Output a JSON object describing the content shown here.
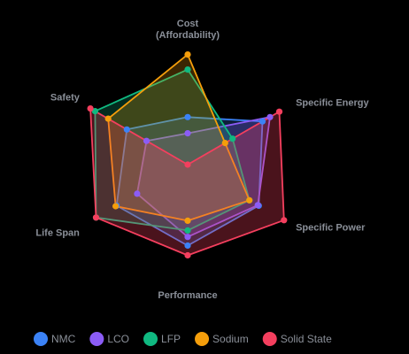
{
  "chart_data": {
    "type": "radar",
    "axes": [
      [
        "Cost",
        "(Affordability)"
      ],
      [
        "Specific Energy"
      ],
      [
        "Specific Power"
      ],
      [
        "Performance"
      ],
      [
        "Life Span"
      ],
      [
        "Safety"
      ]
    ],
    "rmax": 100,
    "grid": false,
    "legend_position": "bottom",
    "series": [
      {
        "name": "NMC",
        "color": "#3b82f6",
        "values": [
          44,
          80,
          76,
          75,
          76,
          65
        ]
      },
      {
        "name": "LCO",
        "color": "#8b5cf6",
        "values": [
          29,
          88,
          75,
          67,
          54,
          44
        ]
      },
      {
        "name": "LFP",
        "color": "#10b981",
        "values": [
          88,
          48,
          66,
          61,
          98,
          99
        ]
      },
      {
        "name": "Sodium",
        "color": "#f59e0b",
        "values": [
          102,
          40,
          66,
          52,
          77,
          85
        ]
      },
      {
        "name": "Solid State",
        "color": "#f43f5e",
        "values": [
          0,
          98,
          103,
          84,
          98,
          104
        ]
      }
    ]
  }
}
